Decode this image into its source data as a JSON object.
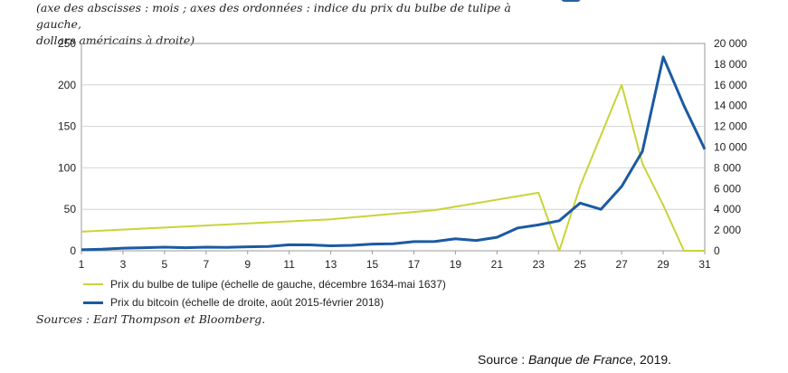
{
  "header": {
    "subtitle_line1": "(axe des abscisses : mois ; axes des ordonnées : indice du prix du bulbe de tulipe à gauche,",
    "subtitle_line2": "dollars américains à droite)",
    "accent_color": "#2e5fa3"
  },
  "chart_data": {
    "type": "line",
    "x": [
      1,
      2,
      3,
      4,
      5,
      6,
      7,
      8,
      9,
      10,
      11,
      12,
      13,
      14,
      15,
      16,
      17,
      18,
      19,
      20,
      21,
      22,
      23,
      24,
      25,
      26,
      27,
      28,
      29,
      30,
      31
    ],
    "x_ticks": [
      "1",
      "3",
      "5",
      "7",
      "9",
      "11",
      "13",
      "15",
      "17",
      "19",
      "21",
      "23",
      "25",
      "27",
      "29",
      "31"
    ],
    "xlim": [
      1,
      31
    ],
    "y_left": {
      "lim": [
        0,
        250
      ],
      "ticks": [
        "0",
        "50",
        "100",
        "150",
        "200",
        "250"
      ]
    },
    "y_right": {
      "lim": [
        0,
        20000
      ],
      "ticks": [
        "0",
        "2 000",
        "4 000",
        "6 000",
        "8 000",
        "10 000",
        "12 000",
        "14 000",
        "16 000",
        "18 000",
        "20 000"
      ]
    },
    "grid": "horizontal",
    "series": [
      {
        "name": "Prix du bulbe de tulipe (échelle de gauche, décembre 1634-mai 1637)",
        "axis": "left",
        "color": "#c8d43a",
        "points": [
          [
            1,
            23
          ],
          [
            13,
            38
          ],
          [
            18,
            49
          ],
          [
            23,
            70
          ],
          [
            24,
            0
          ],
          [
            25,
            78
          ],
          [
            27,
            200
          ],
          [
            28,
            105
          ],
          [
            29,
            55
          ],
          [
            30,
            0
          ],
          [
            31,
            0
          ]
        ]
      },
      {
        "name": "Prix du bitcoin (échelle de droite, août 2015-février 2018)",
        "axis": "right",
        "color": "#1b5aa2",
        "points": [
          [
            1,
            100
          ],
          [
            2,
            150
          ],
          [
            3,
            250
          ],
          [
            4,
            300
          ],
          [
            5,
            350
          ],
          [
            6,
            300
          ],
          [
            7,
            350
          ],
          [
            8,
            330
          ],
          [
            9,
            380
          ],
          [
            10,
            420
          ],
          [
            11,
            580
          ],
          [
            12,
            570
          ],
          [
            13,
            480
          ],
          [
            14,
            520
          ],
          [
            15,
            650
          ],
          [
            16,
            680
          ],
          [
            17,
            880
          ],
          [
            18,
            900
          ],
          [
            19,
            1150
          ],
          [
            20,
            1000
          ],
          [
            21,
            1300
          ],
          [
            22,
            2200
          ],
          [
            23,
            2500
          ],
          [
            24,
            2900
          ],
          [
            25,
            4600
          ],
          [
            26,
            4000
          ],
          [
            27,
            6200
          ],
          [
            28,
            9600
          ],
          [
            29,
            18700
          ],
          [
            30,
            14000
          ],
          [
            31,
            9800
          ]
        ]
      }
    ]
  },
  "legend": {
    "items": [
      {
        "label": "Prix du bulbe de tulipe (échelle de gauche, décembre 1634-mai 1637)",
        "color": "#c8d43a"
      },
      {
        "label": "Prix du bitcoin (échelle de droite, août 2015-février 2018)",
        "color": "#1b5aa2"
      }
    ]
  },
  "sources": "Sources : Earl Thompson et Bloomberg.",
  "footer": {
    "prefix": "Source : ",
    "publication": "Banque de France",
    "suffix": ", 2019."
  }
}
